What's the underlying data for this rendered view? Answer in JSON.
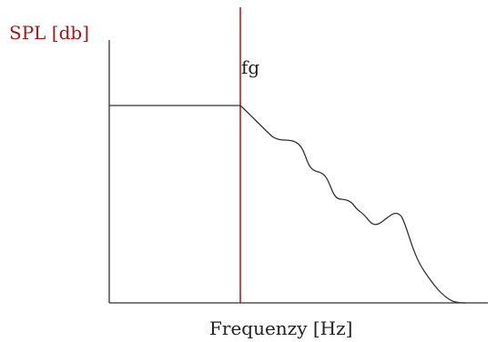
{
  "chart_data": {
    "type": "line",
    "ylabel": "SPL [db]",
    "xlabel": "Frequenzy [Hz]",
    "marker": {
      "label": "fg",
      "color": "#a01818"
    },
    "line_color": "#333333",
    "grid": false,
    "xticks": [],
    "yticks": [],
    "series": [
      {
        "name": "",
        "description_free_curve": true
      }
    ]
  }
}
